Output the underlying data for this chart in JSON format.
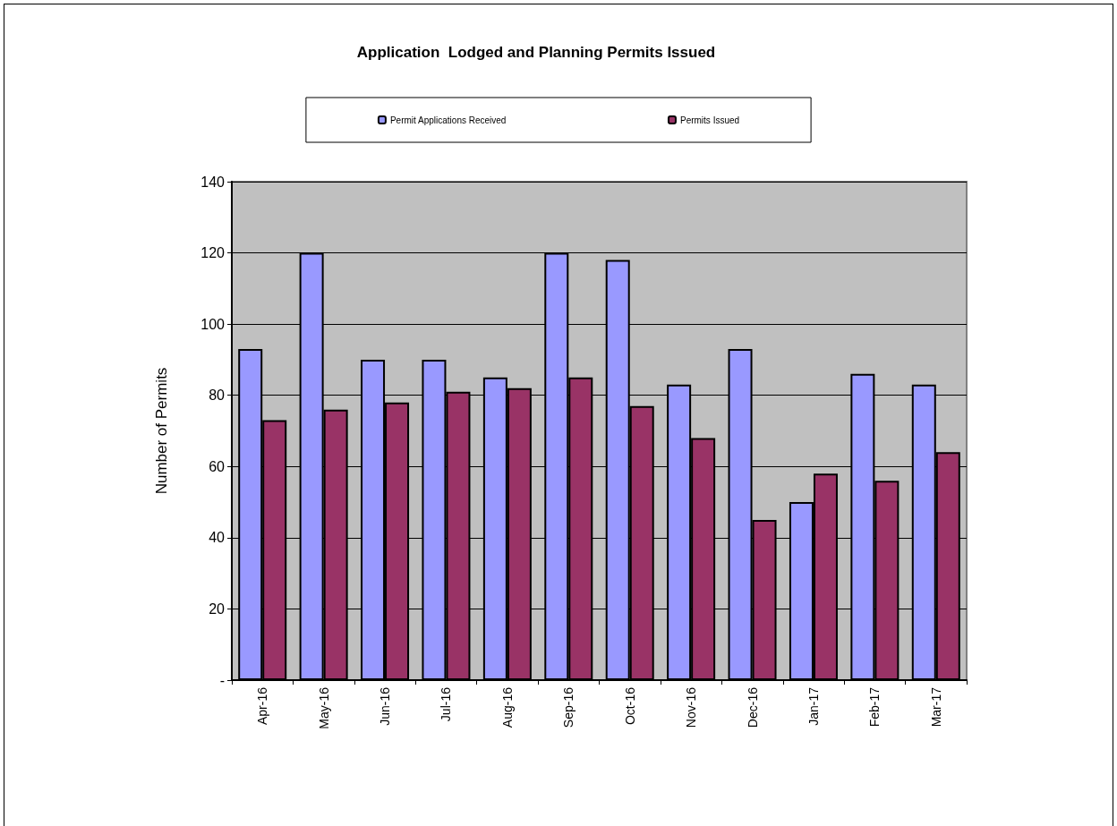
{
  "chart_data": {
    "type": "bar",
    "title": "Application  Lodged and Planning Permits Issued",
    "ylabel": "Number of Permits",
    "categories": [
      "Apr-16",
      "May-16",
      "Jun-16",
      "Jul-16",
      "Aug-16",
      "Sep-16",
      "Oct-16",
      "Nov-16",
      "Dec-16",
      "Jan-17",
      "Feb-17",
      "Mar-17"
    ],
    "series": [
      {
        "name": "Permit Applications Received",
        "color": "#9999ff",
        "values": [
          93,
          120,
          90,
          90,
          85,
          120,
          118,
          83,
          93,
          50,
          86,
          83
        ]
      },
      {
        "name": "Permits Issued",
        "color": "#993366",
        "values": [
          73,
          76,
          78,
          81,
          82,
          85,
          77,
          68,
          45,
          58,
          56,
          64
        ]
      }
    ],
    "ylim": [
      0,
      140
    ],
    "yticks": [
      {
        "value": 0,
        "label": "-"
      },
      20,
      40,
      60,
      80,
      100,
      120,
      140
    ],
    "grid": "y",
    "legend": "top"
  }
}
